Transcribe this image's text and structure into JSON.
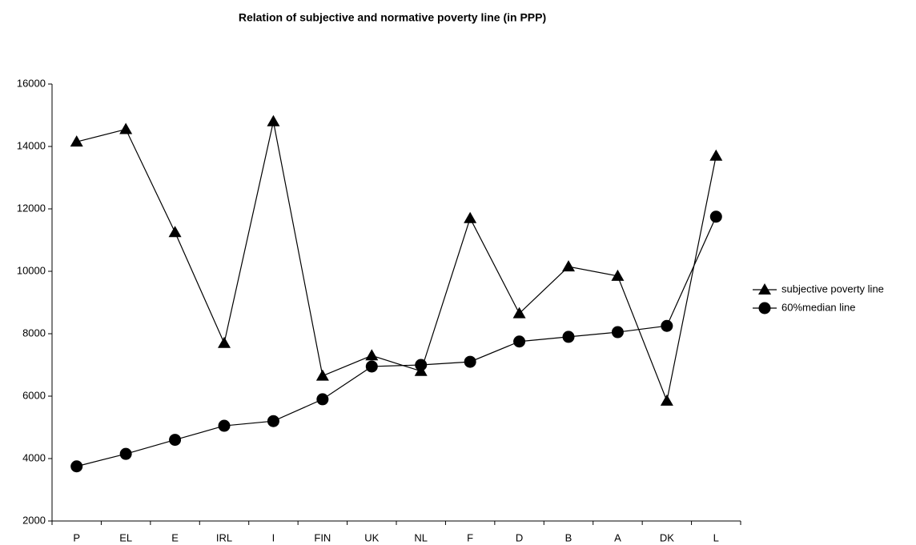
{
  "chart_data": {
    "type": "line",
    "title": "Relation of subjective and normative poverty line (in PPP)",
    "categories": [
      "P",
      "EL",
      "E",
      "IRL",
      "I",
      "FIN",
      "UK",
      "NL",
      "F",
      "D",
      "B",
      "A",
      "DK",
      "L"
    ],
    "series": [
      {
        "name": "subjective poverty line",
        "color": "#000000",
        "marker": "triangle",
        "values": [
          14150,
          14550,
          11250,
          7700,
          14800,
          6650,
          7300,
          6800,
          11700,
          8650,
          10150,
          9850,
          5850,
          13700
        ]
      },
      {
        "name": "60%median line",
        "color": "#000000",
        "marker": "circle",
        "values": [
          3750,
          4150,
          4600,
          5050,
          5200,
          5900,
          6950,
          7000,
          7100,
          7750,
          7900,
          8050,
          8250,
          11750
        ]
      }
    ],
    "ylim": [
      2000,
      16000
    ],
    "yticks": [
      2000,
      4000,
      6000,
      8000,
      10000,
      12000,
      14000,
      16000
    ],
    "grid": false,
    "legend": "right"
  }
}
